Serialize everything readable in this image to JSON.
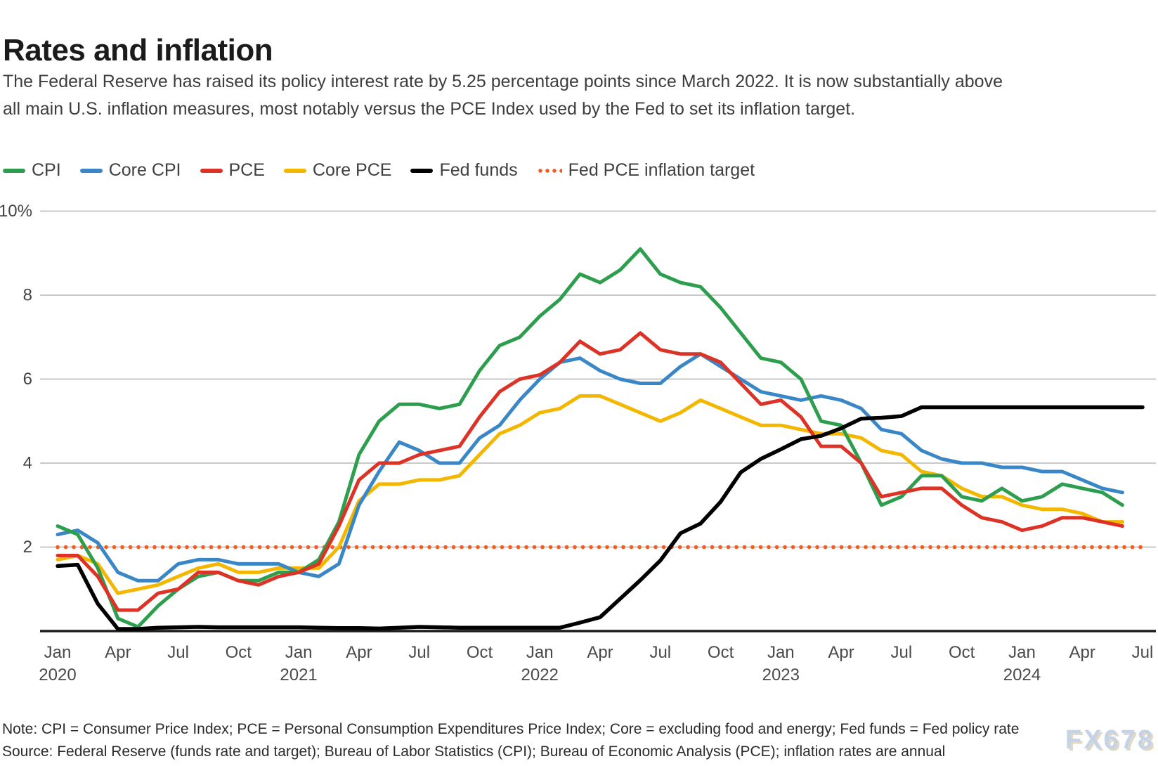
{
  "title": "Rates and inflation",
  "subtitle_lines": [
    "The Federal Reserve has raised its policy interest rate by 5.25 percentage points since March 2022. It is now substantially above",
    "all main U.S. inflation measures, most notably versus the PCE Index used by the Fed to set its inflation target."
  ],
  "notes": {
    "note_line": "Note: CPI = Consumer Price Index; PCE = Personal Consumption Expenditures Price Index; Core = excluding food and energy; Fed funds = Fed policy rate",
    "source_line": "Source: Federal Reserve (funds rate and target); Bureau of Labor Statistics (CPI); Bureau of Economic Analysis (PCE); inflation rates are annual"
  },
  "watermark": "FX678",
  "colors": {
    "cpi": "#2d9e4d",
    "core_cpi": "#3a87c7",
    "pce": "#dd3226",
    "core_pce": "#f3b700",
    "fed_funds": "#000000",
    "target": "#f15d22",
    "grid": "#c9c9c9"
  },
  "chart_data": {
    "type": "line",
    "title": "Rates and inflation",
    "xlabel": "",
    "ylabel": "percent",
    "x_unit": "month",
    "x_start": "2020-01",
    "x_end": "2024-07",
    "ylim": [
      0,
      10
    ],
    "grid": true,
    "legend_position": "top",
    "y_axis": {
      "ticks": [
        {
          "value": 10,
          "label": "10%"
        },
        {
          "value": 8,
          "label": "8"
        },
        {
          "value": 6,
          "label": "6"
        },
        {
          "value": 4,
          "label": "4"
        },
        {
          "value": 2,
          "label": "2"
        }
      ]
    },
    "x_axis": {
      "ticks": [
        {
          "i": 0,
          "label": "Jan",
          "year": "2020"
        },
        {
          "i": 3,
          "label": "Apr"
        },
        {
          "i": 6,
          "label": "Jul"
        },
        {
          "i": 9,
          "label": "Oct"
        },
        {
          "i": 12,
          "label": "Jan",
          "year": "2021"
        },
        {
          "i": 15,
          "label": "Apr"
        },
        {
          "i": 18,
          "label": "Jul"
        },
        {
          "i": 21,
          "label": "Oct"
        },
        {
          "i": 24,
          "label": "Jan",
          "year": "2022"
        },
        {
          "i": 27,
          "label": "Apr"
        },
        {
          "i": 30,
          "label": "Jul"
        },
        {
          "i": 33,
          "label": "Oct"
        },
        {
          "i": 36,
          "label": "Jan",
          "year": "2023"
        },
        {
          "i": 39,
          "label": "Apr"
        },
        {
          "i": 42,
          "label": "Jul"
        },
        {
          "i": 45,
          "label": "Oct"
        },
        {
          "i": 48,
          "label": "Jan",
          "year": "2024"
        },
        {
          "i": 51,
          "label": "Apr"
        },
        {
          "i": 54,
          "label": "Jul"
        }
      ]
    },
    "series": [
      {
        "name": "CPI",
        "key": "cpi",
        "style": "solid",
        "color": "#2d9e4d",
        "start": "2020-01",
        "values": [
          2.5,
          2.3,
          1.5,
          0.3,
          0.1,
          0.6,
          1.0,
          1.3,
          1.4,
          1.2,
          1.2,
          1.4,
          1.4,
          1.7,
          2.6,
          4.2,
          5.0,
          5.4,
          5.4,
          5.3,
          5.4,
          6.2,
          6.8,
          7.0,
          7.5,
          7.9,
          8.5,
          8.3,
          8.6,
          9.1,
          8.5,
          8.3,
          8.2,
          7.7,
          7.1,
          6.5,
          6.4,
          6.0,
          5.0,
          4.9,
          4.0,
          3.0,
          3.2,
          3.7,
          3.7,
          3.2,
          3.1,
          3.4,
          3.1,
          3.2,
          3.5,
          3.4,
          3.3,
          3.0
        ]
      },
      {
        "name": "Core CPI",
        "key": "core-cpi",
        "style": "solid",
        "color": "#3a87c7",
        "start": "2020-01",
        "values": [
          2.3,
          2.4,
          2.1,
          1.4,
          1.2,
          1.2,
          1.6,
          1.7,
          1.7,
          1.6,
          1.6,
          1.6,
          1.4,
          1.3,
          1.6,
          3.0,
          3.8,
          4.5,
          4.3,
          4.0,
          4.0,
          4.6,
          4.9,
          5.5,
          6.0,
          6.4,
          6.5,
          6.2,
          6.0,
          5.9,
          5.9,
          6.3,
          6.6,
          6.3,
          6.0,
          5.7,
          5.6,
          5.5,
          5.6,
          5.5,
          5.3,
          4.8,
          4.7,
          4.3,
          4.1,
          4.0,
          4.0,
          3.9,
          3.9,
          3.8,
          3.8,
          3.6,
          3.4,
          3.3
        ]
      },
      {
        "name": "PCE",
        "key": "pce",
        "style": "solid",
        "color": "#dd3226",
        "start": "2020-01",
        "values": [
          1.8,
          1.8,
          1.3,
          0.5,
          0.5,
          0.9,
          1.0,
          1.4,
          1.4,
          1.2,
          1.1,
          1.3,
          1.4,
          1.6,
          2.5,
          3.6,
          4.0,
          4.0,
          4.2,
          4.3,
          4.4,
          5.1,
          5.7,
          6.0,
          6.1,
          6.4,
          6.9,
          6.6,
          6.7,
          7.1,
          6.7,
          6.6,
          6.6,
          6.4,
          5.9,
          5.4,
          5.5,
          5.1,
          4.4,
          4.4,
          4.0,
          3.2,
          3.3,
          3.4,
          3.4,
          3.0,
          2.7,
          2.6,
          2.4,
          2.5,
          2.7,
          2.7,
          2.6,
          2.5
        ]
      },
      {
        "name": "Core PCE",
        "key": "core-pce",
        "style": "solid",
        "color": "#f3b700",
        "start": "2020-01",
        "values": [
          1.7,
          1.8,
          1.6,
          0.9,
          1.0,
          1.1,
          1.3,
          1.5,
          1.6,
          1.4,
          1.4,
          1.5,
          1.5,
          1.5,
          2.0,
          3.1,
          3.5,
          3.5,
          3.6,
          3.6,
          3.7,
          4.2,
          4.7,
          4.9,
          5.2,
          5.3,
          5.6,
          5.6,
          5.4,
          5.2,
          5.0,
          5.2,
          5.5,
          5.3,
          5.1,
          4.9,
          4.9,
          4.8,
          4.7,
          4.7,
          4.6,
          4.3,
          4.2,
          3.8,
          3.7,
          3.4,
          3.2,
          3.2,
          3.0,
          2.9,
          2.9,
          2.8,
          2.6,
          2.6
        ]
      },
      {
        "name": "Fed funds",
        "key": "fed-funds",
        "style": "solid",
        "color": "#000000",
        "start": "2020-01",
        "values": [
          1.55,
          1.58,
          0.65,
          0.05,
          0.05,
          0.08,
          0.09,
          0.1,
          0.09,
          0.09,
          0.09,
          0.09,
          0.09,
          0.08,
          0.07,
          0.07,
          0.06,
          0.08,
          0.1,
          0.09,
          0.08,
          0.08,
          0.08,
          0.08,
          0.08,
          0.08,
          0.2,
          0.33,
          0.77,
          1.21,
          1.68,
          2.33,
          2.56,
          3.08,
          3.78,
          4.1,
          4.33,
          4.57,
          4.65,
          4.83,
          5.06,
          5.08,
          5.12,
          5.33,
          5.33,
          5.33,
          5.33,
          5.33,
          5.33,
          5.33,
          5.33,
          5.33,
          5.33,
          5.33,
          5.33
        ]
      },
      {
        "name": "Fed PCE inflation target",
        "key": "fed-pce-inflation-target",
        "style": "dotted",
        "color": "#f15d22",
        "start": "2020-01",
        "constant": 2.0,
        "span_months": 55
      }
    ]
  }
}
